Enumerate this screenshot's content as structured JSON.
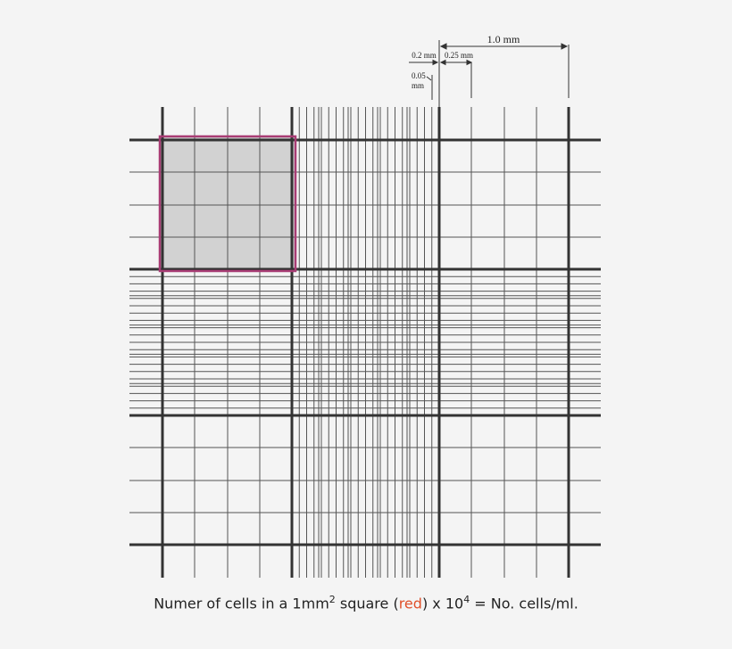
{
  "dimensions": {
    "large": "1.0 mm",
    "small": "0.2 mm",
    "medium": "0.25 mm",
    "tiny_value": "0.05",
    "tiny_unit": "mm"
  },
  "caption": {
    "parts": [
      "Numer of cells in a 1mm",
      "2",
      " square (",
      "red",
      ") x 10",
      "4",
      " = No. cells/ml."
    ]
  }
}
